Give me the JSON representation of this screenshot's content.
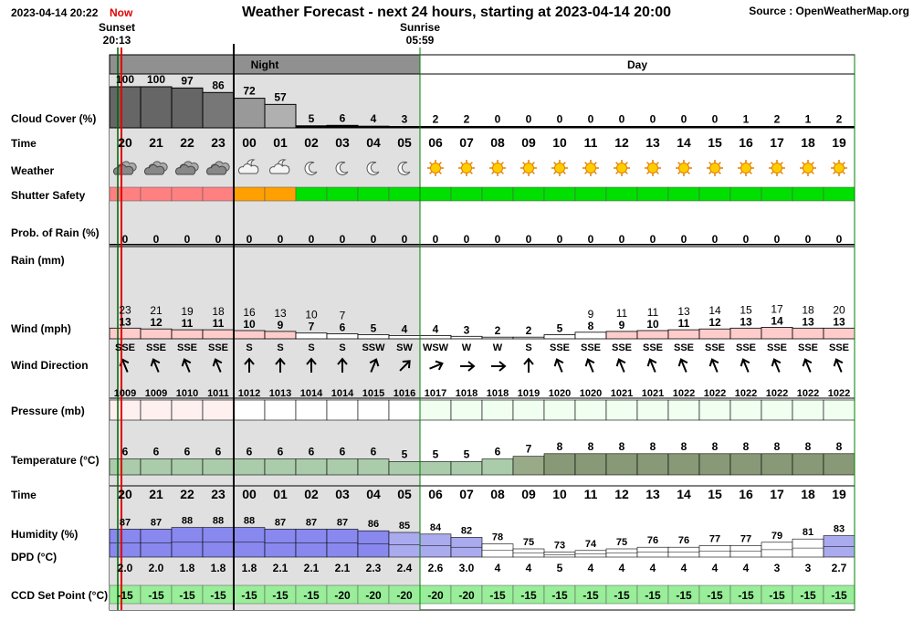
{
  "header": {
    "timestamp": "2023-04-14 20:22",
    "now_label": "Now",
    "title": "Weather Forecast - next 24 hours, starting at 2023-04-14 20:00",
    "source": "Source : OpenWeatherMap.org"
  },
  "sun_events": {
    "sunset_label": "Sunset",
    "sunset_time": "20:13",
    "sunrise_label": "Sunrise",
    "sunrise_time": "05:59"
  },
  "periods": {
    "night_label": "Night",
    "day_label": "Day"
  },
  "row_labels": {
    "cloud_cover": "Cloud Cover (%)",
    "time": "Time",
    "weather": "Weather",
    "shutter_safety": "Shutter Safety",
    "rain_prob": "Prob. of Rain (%)",
    "rain": "Rain (mm)",
    "wind": "Wind (mph)",
    "wind_direction": "Wind Direction",
    "pressure": "Pressure (mb)",
    "temperature": "Temperature (°C)",
    "time2": "Time",
    "humidity": "Humidity (%)",
    "dpd": "DPD (°C)",
    "ccd": "CCD Set Point (°C)"
  },
  "colors": {
    "night_shade": "#e0e0e0",
    "night_header": "#909090",
    "sunset_line": "#e00000",
    "sunrise_line": "#008000",
    "now_line": "#006000",
    "safe": "#00e000",
    "caution": "#ffa000",
    "unsafe": "#ff8080",
    "temp_bar": "#889977",
    "humidity_bar": "#9999ee",
    "ccd_cell": "#99ee99"
  },
  "chart_data": {
    "type": "table",
    "hours": [
      "20",
      "21",
      "22",
      "23",
      "00",
      "01",
      "02",
      "03",
      "04",
      "05",
      "06",
      "07",
      "08",
      "09",
      "10",
      "11",
      "12",
      "13",
      "14",
      "15",
      "16",
      "17",
      "18",
      "19"
    ],
    "cloud_cover": [
      100,
      100,
      97,
      86,
      72,
      57,
      5,
      6,
      4,
      3,
      2,
      2,
      0,
      0,
      0,
      0,
      0,
      0,
      0,
      0,
      1,
      2,
      1,
      2
    ],
    "weather_icons": [
      "cloudy-icon",
      "cloudy-icon",
      "cloudy-icon",
      "cloudy-icon",
      "partly-cloudy-night-icon",
      "partly-cloudy-night-icon",
      "moon-icon",
      "moon-icon",
      "moon-icon",
      "moon-icon",
      "sun-icon",
      "sun-icon",
      "sun-icon",
      "sun-icon",
      "sun-icon",
      "sun-icon",
      "sun-icon",
      "sun-icon",
      "sun-icon",
      "sun-icon",
      "sun-icon",
      "sun-icon",
      "sun-icon",
      "sun-icon"
    ],
    "shutter_safety": [
      "unsafe",
      "unsafe",
      "unsafe",
      "unsafe",
      "caution",
      "caution",
      "safe",
      "safe",
      "safe",
      "safe",
      "safe",
      "safe",
      "safe",
      "safe",
      "safe",
      "safe",
      "safe",
      "safe",
      "safe",
      "safe",
      "safe",
      "safe",
      "safe",
      "safe"
    ],
    "rain_prob": [
      0,
      0,
      0,
      0,
      0,
      0,
      0,
      0,
      0,
      0,
      0,
      0,
      0,
      0,
      0,
      0,
      0,
      0,
      0,
      0,
      0,
      0,
      0,
      0
    ],
    "wind_gust": [
      23,
      21,
      19,
      18,
      16,
      13,
      10,
      7,
      null,
      null,
      null,
      null,
      null,
      null,
      null,
      9,
      11,
      11,
      13,
      14,
      15,
      17,
      18,
      20
    ],
    "wind_speed": [
      13,
      12,
      11,
      11,
      10,
      9,
      7,
      6,
      5,
      4,
      4,
      3,
      2,
      2,
      5,
      8,
      9,
      10,
      11,
      12,
      13,
      14,
      13,
      13
    ],
    "wind_direction": [
      "SSE",
      "SSE",
      "SSE",
      "SSE",
      "S",
      "S",
      "S",
      "S",
      "SSW",
      "SW",
      "WSW",
      "W",
      "W",
      "S",
      "SSE",
      "SSE",
      "SSE",
      "SSE",
      "SSE",
      "SSE",
      "SSE",
      "SSE",
      "SSE",
      "SSE"
    ],
    "wind_arrow_deg": [
      -22.5,
      -22.5,
      -22.5,
      -22.5,
      0,
      0,
      0,
      0,
      22.5,
      45,
      67.5,
      90,
      90,
      0,
      -22.5,
      -22.5,
      -22.5,
      -22.5,
      -22.5,
      -22.5,
      -22.5,
      -22.5,
      -22.5,
      -22.5
    ],
    "pressure": [
      1009,
      1009,
      1010,
      1011,
      1012,
      1013,
      1014,
      1014,
      1015,
      1016,
      1017,
      1018,
      1018,
      1019,
      1020,
      1020,
      1021,
      1021,
      1022,
      1022,
      1022,
      1022,
      1022,
      1022
    ],
    "temperature": [
      6,
      6,
      6,
      6,
      6,
      6,
      6,
      6,
      6,
      5,
      5,
      5,
      6,
      7,
      8,
      8,
      8,
      8,
      8,
      8,
      8,
      8,
      8,
      8
    ],
    "humidity": [
      87,
      87,
      88,
      88,
      88,
      87,
      87,
      87,
      86,
      85,
      84,
      82,
      78,
      75,
      73,
      74,
      75,
      76,
      76,
      77,
      77,
      79,
      81,
      83
    ],
    "dpd": [
      "2.0",
      "2.0",
      "1.8",
      "1.8",
      "1.8",
      "2.1",
      "2.1",
      "2.1",
      "2.3",
      "2.4",
      "2.6",
      "3.0",
      "4",
      "4",
      "5",
      "4",
      "4",
      "4",
      "4",
      "4",
      "4",
      "3",
      "3",
      "2.7"
    ],
    "ccd_set_point": [
      -15,
      -15,
      -15,
      -15,
      -15,
      -15,
      -15,
      -20,
      -20,
      -20,
      -20,
      -20,
      -15,
      -15,
      -15,
      -15,
      -15,
      -15,
      -15,
      -15,
      -15,
      -15,
      -15,
      -15
    ]
  }
}
